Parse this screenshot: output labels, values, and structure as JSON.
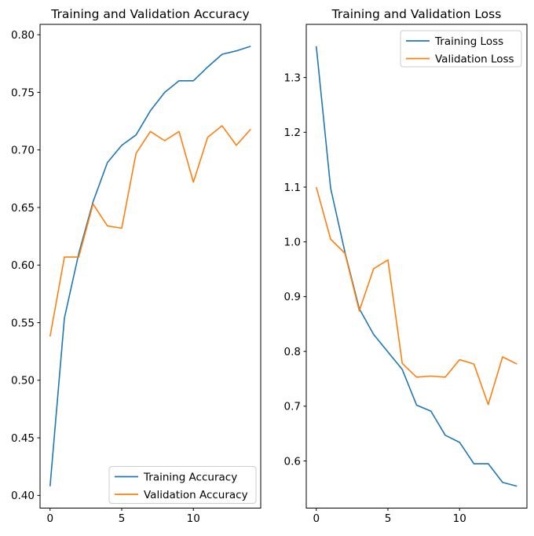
{
  "figure": {
    "background": "#ffffff",
    "accent_colors": {
      "training": "#1f77b4",
      "validation": "#ff7f0e"
    }
  },
  "chart_data": [
    {
      "type": "line",
      "title": "Training and Validation Accuracy",
      "xlabel": "",
      "ylabel": "",
      "x": [
        0,
        1,
        2,
        3,
        4,
        5,
        6,
        7,
        8,
        9,
        10,
        11,
        12,
        13,
        14
      ],
      "series": [
        {
          "name": "Training Accuracy",
          "color": "#1f77b4",
          "values": [
            0.408,
            0.554,
            0.61,
            0.655,
            0.689,
            0.704,
            0.713,
            0.734,
            0.75,
            0.76,
            0.76,
            0.772,
            0.783,
            0.786,
            0.79
          ]
        },
        {
          "name": "Validation Accuracy",
          "color": "#ff7f0e",
          "values": [
            0.538,
            0.607,
            0.607,
            0.653,
            0.634,
            0.632,
            0.697,
            0.716,
            0.708,
            0.716,
            0.672,
            0.711,
            0.721,
            0.704,
            0.718
          ]
        }
      ],
      "xlim": [
        -0.7,
        14.7
      ],
      "ylim": [
        0.389,
        0.809
      ],
      "xticks": {
        "values": [
          0,
          5,
          10
        ],
        "labels": [
          "0",
          "5",
          "10"
        ]
      },
      "yticks": {
        "values": [
          0.4,
          0.45,
          0.5,
          0.55,
          0.6,
          0.65,
          0.7,
          0.75,
          0.8
        ],
        "labels": [
          "0.40",
          "0.45",
          "0.50",
          "0.55",
          "0.60",
          "0.65",
          "0.70",
          "0.75",
          "0.80"
        ]
      },
      "grid": "off",
      "legend_loc": "lower right"
    },
    {
      "type": "line",
      "title": "Training and Validation Loss",
      "xlabel": "",
      "ylabel": "",
      "x": [
        0,
        1,
        2,
        3,
        4,
        5,
        6,
        7,
        8,
        9,
        10,
        11,
        12,
        13,
        14
      ],
      "series": [
        {
          "name": "Training Loss",
          "color": "#1f77b4",
          "values": [
            1.357,
            1.098,
            0.981,
            0.878,
            0.831,
            0.799,
            0.767,
            0.702,
            0.691,
            0.647,
            0.634,
            0.595,
            0.595,
            0.561,
            0.554
          ]
        },
        {
          "name": "Validation Loss",
          "color": "#ff7f0e",
          "values": [
            1.1,
            1.005,
            0.979,
            0.874,
            0.951,
            0.967,
            0.778,
            0.753,
            0.755,
            0.753,
            0.785,
            0.777,
            0.703,
            0.79,
            0.777
          ]
        }
      ],
      "xlim": [
        -0.7,
        14.7
      ],
      "ylim": [
        0.514,
        1.397
      ],
      "xticks": {
        "values": [
          0,
          5,
          10
        ],
        "labels": [
          "0",
          "5",
          "10"
        ]
      },
      "yticks": {
        "values": [
          0.6,
          0.7,
          0.8,
          0.9,
          1.0,
          1.1,
          1.2,
          1.3
        ],
        "labels": [
          "0.6",
          "0.7",
          "0.8",
          "0.9",
          "1.0",
          "1.1",
          "1.2",
          "1.3"
        ]
      },
      "grid": "off",
      "legend_loc": "upper right"
    }
  ]
}
